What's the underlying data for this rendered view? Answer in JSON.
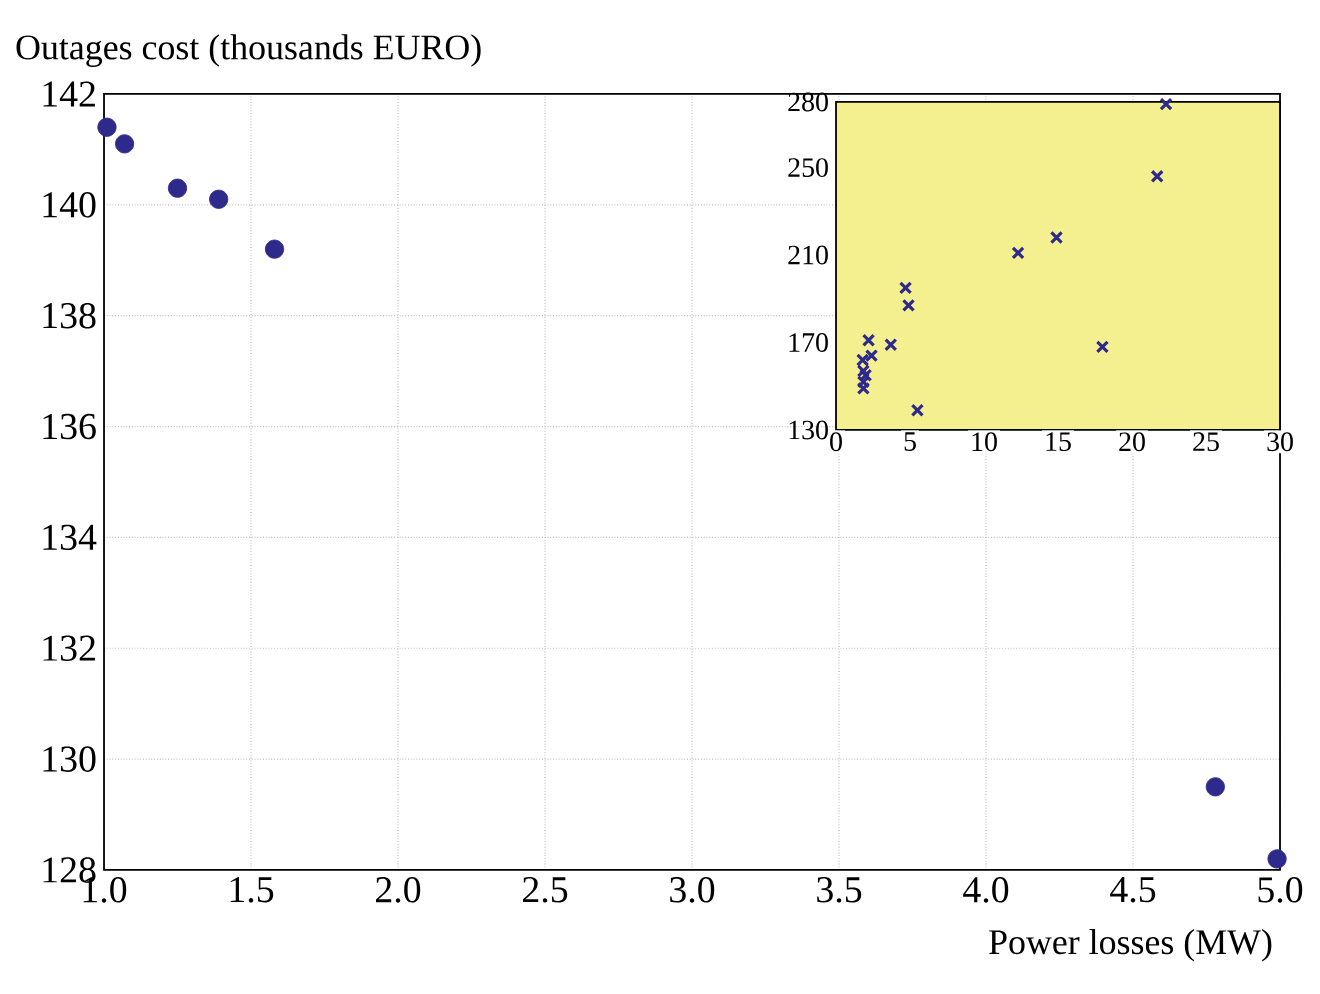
{
  "chart_data": [
    {
      "type": "scatter",
      "xlabel": "Power losses (MW)",
      "ylabel": "Outages cost  (thousands EURO)",
      "xlim": [
        1,
        5
      ],
      "ylim": [
        128,
        142
      ],
      "xticks": [
        {
          "value": 1,
          "label": "1.0"
        },
        1.5,
        {
          "value": 2,
          "label": "2.0"
        },
        2.5,
        {
          "value": 3,
          "label": "3.0"
        },
        3.5,
        {
          "value": 4,
          "label": "4.0"
        },
        4.5,
        {
          "value": 5,
          "label": "5.0"
        }
      ],
      "yticks": [
        128,
        130,
        132,
        134,
        136,
        138,
        140,
        142
      ],
      "grid": true,
      "marker": "circle",
      "series": [
        {
          "color": "#2e2a8c",
          "x": [
            1.01,
            1.07,
            1.25,
            1.39,
            1.58,
            4.78,
            4.99
          ],
          "values": [
            141.4,
            141.1,
            140.3,
            140.1,
            139.2,
            129.5,
            128.2
          ]
        }
      ]
    },
    {
      "type": "scatter",
      "xlim": [
        0,
        30
      ],
      "ylim": [
        130,
        280
      ],
      "xticks": [
        0,
        5,
        10,
        15,
        20,
        25,
        30
      ],
      "yticks": [
        130,
        170,
        210,
        250,
        280
      ],
      "grid": false,
      "marker": "cross",
      "series": [
        {
          "color": "#2e2a8c",
          "x": [
            22.3,
            21.7,
            14.9,
            12.3,
            18.0,
            4.7,
            4.9,
            3.7,
            2.2,
            2.4,
            5.5,
            1.8,
            1.85,
            1.85,
            1.85,
            2.0
          ],
          "values": [
            279,
            246,
            218,
            211,
            168,
            195,
            187,
            169,
            171,
            164,
            139,
            162,
            157,
            152,
            149,
            155
          ]
        }
      ]
    }
  ]
}
